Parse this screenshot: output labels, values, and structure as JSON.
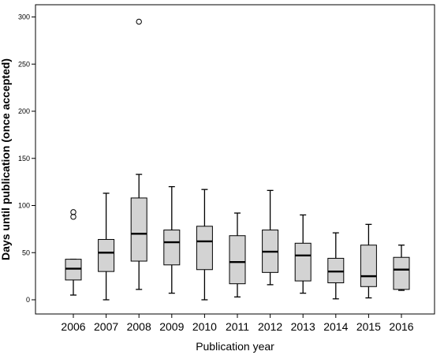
{
  "chart_data": {
    "type": "boxplot",
    "title": "",
    "xlabel": "Publication year",
    "ylabel": "Days until publication (once accepted)",
    "ylim": [
      -15,
      315
    ],
    "yticks": [
      0,
      50,
      100,
      150,
      200,
      250,
      300
    ],
    "grid": false,
    "legend": "none",
    "box_color": "#d3d3d3",
    "categories": [
      "2006",
      "2007",
      "2008",
      "2009",
      "2010",
      "2011",
      "2012",
      "2013",
      "2014",
      "2015",
      "2016"
    ],
    "boxes": [
      {
        "category": "2006",
        "whisker_low": 5,
        "q1": 21,
        "median": 33,
        "q3": 43,
        "whisker_high": 43,
        "outliers": [
          88,
          93
        ]
      },
      {
        "category": "2007",
        "whisker_low": 0,
        "q1": 30,
        "median": 50,
        "q3": 64,
        "whisker_high": 113,
        "outliers": []
      },
      {
        "category": "2008",
        "whisker_low": 11,
        "q1": 41,
        "median": 70,
        "q3": 108,
        "whisker_high": 133,
        "outliers": [
          295
        ]
      },
      {
        "category": "2009",
        "whisker_low": 7,
        "q1": 37,
        "median": 61,
        "q3": 74,
        "whisker_high": 120,
        "outliers": []
      },
      {
        "category": "2010",
        "whisker_low": 0,
        "q1": 32,
        "median": 62,
        "q3": 78,
        "whisker_high": 117,
        "outliers": []
      },
      {
        "category": "2011",
        "whisker_low": 3,
        "q1": 17,
        "median": 40,
        "q3": 68,
        "whisker_high": 92,
        "outliers": []
      },
      {
        "category": "2012",
        "whisker_low": 16,
        "q1": 29,
        "median": 51,
        "q3": 74,
        "whisker_high": 116,
        "outliers": []
      },
      {
        "category": "2013",
        "whisker_low": 7,
        "q1": 20,
        "median": 47,
        "q3": 60,
        "whisker_high": 90,
        "outliers": []
      },
      {
        "category": "2014",
        "whisker_low": 1,
        "q1": 18,
        "median": 30,
        "q3": 44,
        "whisker_high": 71,
        "outliers": []
      },
      {
        "category": "2015",
        "whisker_low": 2,
        "q1": 14,
        "median": 25,
        "q3": 58,
        "whisker_high": 80,
        "outliers": []
      },
      {
        "category": "2016",
        "whisker_low": 10,
        "q1": 11,
        "median": 32,
        "q3": 45,
        "whisker_high": 58,
        "outliers": []
      }
    ]
  }
}
